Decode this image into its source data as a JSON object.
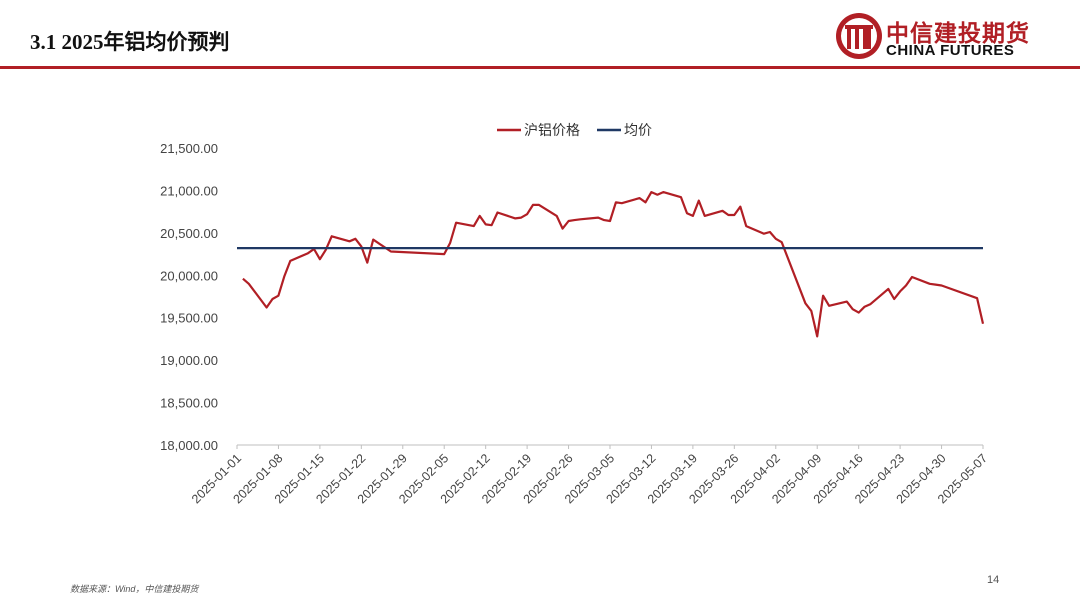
{
  "header": {
    "title": "3.1 2025年铝均价预判"
  },
  "logo": {
    "name_cn": "中信建投期货",
    "name_en": "CHINA FUTURES",
    "color": "#b11f25",
    "icon": "citic-logo-icon"
  },
  "footer": {
    "source": "数据来源：Wind，中信建投期货",
    "page_number": "14"
  },
  "colors": {
    "accent": "#b11f25",
    "price_series": "#b11f25",
    "average_series": "#1f3864"
  },
  "chart_data": {
    "type": "line",
    "title": "",
    "xlabel": "",
    "ylabel": "",
    "legend_position": "top-center",
    "grid": false,
    "ylim": [
      18000,
      21500
    ],
    "xlim": [
      "2025-01-01",
      "2025-05-07"
    ],
    "y_tick_labels": [
      "18,000.00",
      "18,500.00",
      "19,000.00",
      "19,500.00",
      "20,000.00",
      "20,500.00",
      "21,000.00",
      "21,500.00"
    ],
    "y_tick_values": [
      18000,
      18500,
      19000,
      19500,
      20000,
      20500,
      21000,
      21500
    ],
    "x_tick_labels": [
      "2025-01-01",
      "2025-01-08",
      "2025-01-15",
      "2025-01-22",
      "2025-01-29",
      "2025-02-05",
      "2025-02-12",
      "2025-02-19",
      "2025-02-26",
      "2025-03-05",
      "2025-03-12",
      "2025-03-19",
      "2025-03-26",
      "2025-04-02",
      "2025-04-09",
      "2025-04-16",
      "2025-04-23",
      "2025-04-30",
      "2025-05-07"
    ],
    "series": [
      {
        "name": "沪铝价格",
        "color": "#b11f25",
        "x": [
          "2025-01-02",
          "2025-01-03",
          "2025-01-06",
          "2025-01-07",
          "2025-01-08",
          "2025-01-09",
          "2025-01-10",
          "2025-01-13",
          "2025-01-14",
          "2025-01-15",
          "2025-01-16",
          "2025-01-17",
          "2025-01-20",
          "2025-01-21",
          "2025-01-22",
          "2025-01-23",
          "2025-01-24",
          "2025-01-27",
          "2025-02-05",
          "2025-02-06",
          "2025-02-07",
          "2025-02-10",
          "2025-02-11",
          "2025-02-12",
          "2025-02-13",
          "2025-02-14",
          "2025-02-17",
          "2025-02-18",
          "2025-02-19",
          "2025-02-20",
          "2025-02-21",
          "2025-02-24",
          "2025-02-25",
          "2025-02-26",
          "2025-02-27",
          "2025-02-28",
          "2025-03-03",
          "2025-03-04",
          "2025-03-05",
          "2025-03-06",
          "2025-03-07",
          "2025-03-10",
          "2025-03-11",
          "2025-03-12",
          "2025-03-13",
          "2025-03-14",
          "2025-03-17",
          "2025-03-18",
          "2025-03-19",
          "2025-03-20",
          "2025-03-21",
          "2025-03-24",
          "2025-03-25",
          "2025-03-26",
          "2025-03-27",
          "2025-03-28",
          "2025-03-31",
          "2025-04-01",
          "2025-04-02",
          "2025-04-03",
          "2025-04-07",
          "2025-04-08",
          "2025-04-09",
          "2025-04-10",
          "2025-04-11",
          "2025-04-14",
          "2025-04-15",
          "2025-04-16",
          "2025-04-17",
          "2025-04-18",
          "2025-04-21",
          "2025-04-22",
          "2025-04-23",
          "2025-04-24",
          "2025-04-25",
          "2025-04-28",
          "2025-04-29",
          "2025-04-30",
          "2025-05-06",
          "2025-05-07"
        ],
        "values": [
          19960,
          19900,
          19620,
          19720,
          19760,
          19990,
          20170,
          20260,
          20310,
          20190,
          20300,
          20460,
          20400,
          20430,
          20340,
          20150,
          20420,
          20280,
          20250,
          20380,
          20620,
          20580,
          20700,
          20600,
          20590,
          20740,
          20670,
          20680,
          20720,
          20830,
          20830,
          20700,
          20550,
          20640,
          20650,
          20660,
          20680,
          20650,
          20640,
          20860,
          20850,
          20910,
          20860,
          20980,
          20950,
          20980,
          20920,
          20730,
          20700,
          20880,
          20700,
          20760,
          20710,
          20710,
          20810,
          20580,
          20490,
          20510,
          20430,
          20390,
          19670,
          19580,
          19280,
          19760,
          19640,
          19690,
          19600,
          19560,
          19630,
          19660,
          19840,
          19720,
          19810,
          19880,
          19980,
          19900,
          19890,
          19880,
          19730,
          19430
        ]
      },
      {
        "name": "均价",
        "color": "#1f3864",
        "x": [
          "2025-01-01",
          "2025-05-07"
        ],
        "values": [
          20320,
          20320
        ]
      }
    ]
  }
}
